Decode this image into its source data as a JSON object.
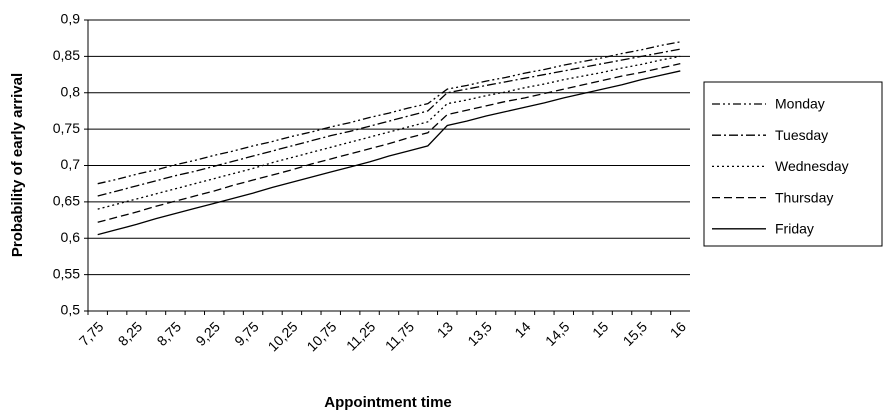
{
  "chart_data": {
    "type": "line",
    "x_label": "Appointment time",
    "y_label": "Probability of early arrival",
    "categories": [
      "7,75",
      null,
      "8,25",
      null,
      "8,75",
      null,
      "9,25",
      null,
      "9,75",
      null,
      "10,25",
      null,
      "10,75",
      null,
      "11,25",
      null,
      "11,75",
      null,
      "13",
      null,
      "13,5",
      null,
      "14",
      null,
      "14,5",
      null,
      "15",
      null,
      "15,5",
      null,
      "16"
    ],
    "ylim": [
      0.5,
      0.9
    ],
    "yticks": [
      {
        "value": 0.5,
        "label": "0,5"
      },
      {
        "value": 0.55,
        "label": "0,55"
      },
      {
        "value": 0.6,
        "label": "0,6"
      },
      {
        "value": 0.65,
        "label": "0,65"
      },
      {
        "value": 0.7,
        "label": "0,7"
      },
      {
        "value": 0.75,
        "label": "0,75"
      },
      {
        "value": 0.8,
        "label": "0,8"
      },
      {
        "value": 0.85,
        "label": "0,85"
      },
      {
        "value": 0.9,
        "label": "0,9"
      }
    ],
    "grid": true,
    "legend": "right",
    "series": [
      {
        "name": "Monday",
        "color": "#000000",
        "dash": "dash-dot-dot",
        "values": [
          0.675,
          0.681,
          0.688,
          0.694,
          0.701,
          0.707,
          0.714,
          0.72,
          0.727,
          0.733,
          0.74,
          0.746,
          0.753,
          0.759,
          0.766,
          0.772,
          0.779,
          0.785,
          0.805,
          0.81,
          0.816,
          0.821,
          0.827,
          0.832,
          0.838,
          0.843,
          0.848,
          0.854,
          0.859,
          0.865,
          0.87
        ]
      },
      {
        "name": "Tuesday",
        "color": "#000000",
        "dash": "dash-dot",
        "values": [
          0.658,
          0.665,
          0.672,
          0.679,
          0.686,
          0.692,
          0.699,
          0.706,
          0.713,
          0.72,
          0.727,
          0.734,
          0.741,
          0.747,
          0.754,
          0.761,
          0.768,
          0.775,
          0.8,
          0.805,
          0.81,
          0.815,
          0.82,
          0.825,
          0.83,
          0.835,
          0.84,
          0.845,
          0.85,
          0.855,
          0.86
        ]
      },
      {
        "name": "Wednesday",
        "color": "#000000",
        "dash": "dotted",
        "values": [
          0.64,
          0.647,
          0.654,
          0.661,
          0.668,
          0.675,
          0.682,
          0.689,
          0.696,
          0.704,
          0.711,
          0.718,
          0.725,
          0.732,
          0.739,
          0.746,
          0.753,
          0.76,
          0.785,
          0.79,
          0.796,
          0.801,
          0.807,
          0.812,
          0.818,
          0.823,
          0.828,
          0.834,
          0.839,
          0.845,
          0.85
        ]
      },
      {
        "name": "Thursday",
        "color": "#000000",
        "dash": "dashed",
        "values": [
          0.622,
          0.629,
          0.636,
          0.644,
          0.651,
          0.658,
          0.665,
          0.673,
          0.68,
          0.687,
          0.694,
          0.702,
          0.709,
          0.716,
          0.723,
          0.73,
          0.738,
          0.745,
          0.77,
          0.776,
          0.782,
          0.788,
          0.793,
          0.799,
          0.805,
          0.811,
          0.817,
          0.823,
          0.828,
          0.834,
          0.84
        ]
      },
      {
        "name": "Friday",
        "color": "#000000",
        "dash": "solid",
        "values": [
          0.605,
          0.612,
          0.619,
          0.627,
          0.634,
          0.641,
          0.648,
          0.655,
          0.662,
          0.67,
          0.677,
          0.684,
          0.691,
          0.698,
          0.705,
          0.713,
          0.72,
          0.727,
          0.755,
          0.761,
          0.768,
          0.774,
          0.78,
          0.786,
          0.793,
          0.799,
          0.805,
          0.811,
          0.818,
          0.824,
          0.83
        ]
      }
    ]
  }
}
